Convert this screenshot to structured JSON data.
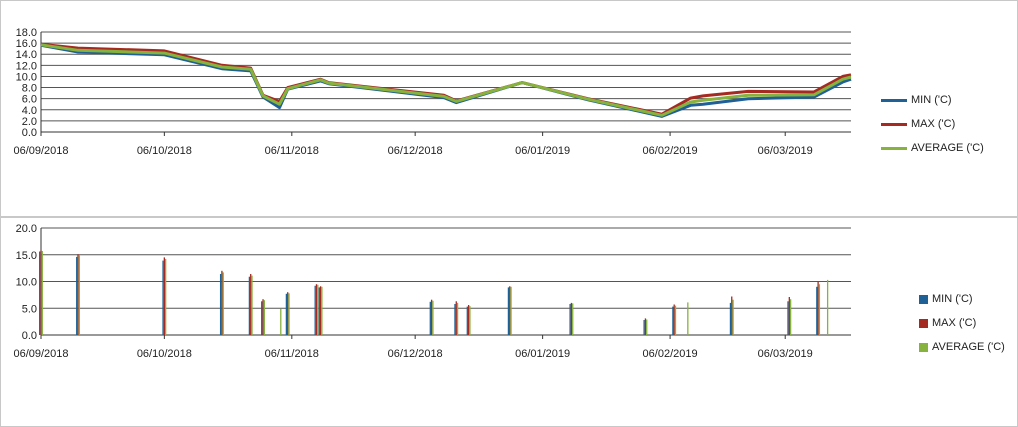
{
  "colors": {
    "min": "#1f6096",
    "max": "#a52a22",
    "average": "#86b23d",
    "grid": "#555555",
    "axis": "#333333"
  },
  "chart_data": [
    {
      "type": "line",
      "title": "",
      "xlabel": "",
      "ylabel": "",
      "x_ticks": [
        "06/09/2018",
        "06/10/2018",
        "06/11/2018",
        "06/12/2018",
        "06/01/2019",
        "06/02/2019",
        "06/03/2019"
      ],
      "y_ticks": [
        "0.0",
        "2.0",
        "4.0",
        "6.0",
        "8.0",
        "10.0",
        "12.0",
        "14.0",
        "16.0",
        "18.0"
      ],
      "ylim": [
        0,
        18
      ],
      "xlim": [
        "2018-09-06",
        "2019-03-22"
      ],
      "grid": true,
      "legend_position": "right",
      "x": [
        "2018-09-06",
        "2018-09-15",
        "2018-10-06",
        "2018-10-20",
        "2018-10-27",
        "2018-10-30",
        "2018-11-03",
        "2018-11-05",
        "2018-11-13",
        "2018-11-15",
        "2018-12-13",
        "2018-12-16",
        "2019-01-01",
        "2019-01-17",
        "2019-02-04",
        "2019-02-11",
        "2019-02-14",
        "2019-02-25",
        "2019-03-13",
        "2019-03-20",
        "2019-03-22"
      ],
      "series": [
        {
          "name": "MIN ('C)",
          "color_key": "min",
          "values": [
            15.6,
            14.4,
            13.9,
            11.4,
            11.0,
            6.3,
            4.4,
            7.7,
            9.2,
            8.7,
            6.2,
            5.3,
            8.9,
            5.8,
            2.8,
            4.8,
            5.0,
            6.0,
            6.3,
            9.0,
            9.5
          ]
        },
        {
          "name": "MAX ('C)",
          "color_key": "max",
          "values": [
            15.8,
            15.1,
            14.6,
            12.0,
            11.5,
            6.6,
            5.5,
            8.0,
            9.5,
            8.9,
            6.6,
            5.6,
            8.9,
            6.0,
            3.2,
            6.1,
            6.5,
            7.3,
            7.2,
            10.0,
            10.3
          ]
        },
        {
          "name": "AVERAGE ('C)",
          "color_key": "average",
          "values": [
            15.7,
            14.7,
            14.2,
            11.7,
            11.3,
            6.5,
            5.0,
            7.8,
            9.4,
            8.8,
            6.4,
            5.5,
            8.9,
            5.9,
            3.0,
            5.4,
            5.7,
            6.6,
            6.7,
            9.5,
            9.9
          ]
        }
      ]
    },
    {
      "type": "bar",
      "title": "",
      "xlabel": "",
      "ylabel": "",
      "x_ticks": [
        "06/09/2018",
        "06/10/2018",
        "06/11/2018",
        "06/12/2018",
        "06/01/2019",
        "06/02/2019",
        "06/03/2019"
      ],
      "y_ticks": [
        "0.0",
        "5.0",
        "10.0",
        "15.0",
        "20.0"
      ],
      "ylim": [
        0,
        20
      ],
      "xlim": [
        "2018-09-06",
        "2019-03-22"
      ],
      "grid": true,
      "legend_position": "right",
      "x": [
        "2018-09-06",
        "2018-09-15",
        "2018-10-06",
        "2018-10-20",
        "2018-10-27",
        "2018-10-30",
        "2018-11-03",
        "2018-11-05",
        "2018-11-12",
        "2018-11-13",
        "2018-12-10",
        "2018-12-16",
        "2018-12-19",
        "2018-12-29",
        "2019-01-13",
        "2019-01-31",
        "2019-02-07",
        "2019-02-10",
        "2019-02-21",
        "2019-03-07",
        "2019-03-14",
        "2019-03-16"
      ],
      "series": [
        {
          "name": "MIN ('C)",
          "color_key": "min",
          "values": [
            15.6,
            14.6,
            13.9,
            11.4,
            10.9,
            6.3,
            null,
            7.7,
            9.2,
            8.9,
            6.2,
            5.8,
            5.3,
            8.9,
            5.8,
            2.8,
            5.3,
            null,
            6.0,
            6.3,
            9.0,
            null
          ]
        },
        {
          "name": "MAX ('C)",
          "color_key": "max",
          "values": [
            15.8,
            15.1,
            14.5,
            12.0,
            11.4,
            6.7,
            null,
            8.0,
            9.5,
            9.1,
            6.6,
            6.3,
            5.6,
            9.1,
            6.0,
            3.1,
            5.7,
            null,
            7.2,
            7.1,
            10.0,
            null
          ]
        },
        {
          "name": "AVERAGE ('C)",
          "color_key": "average",
          "values": [
            15.7,
            14.9,
            14.2,
            11.7,
            11.1,
            6.5,
            4.9,
            7.8,
            9.4,
            9.0,
            6.4,
            6.0,
            5.4,
            9.0,
            5.9,
            2.9,
            5.5,
            6.1,
            6.6,
            6.7,
            9.5,
            10.3
          ]
        }
      ]
    }
  ]
}
